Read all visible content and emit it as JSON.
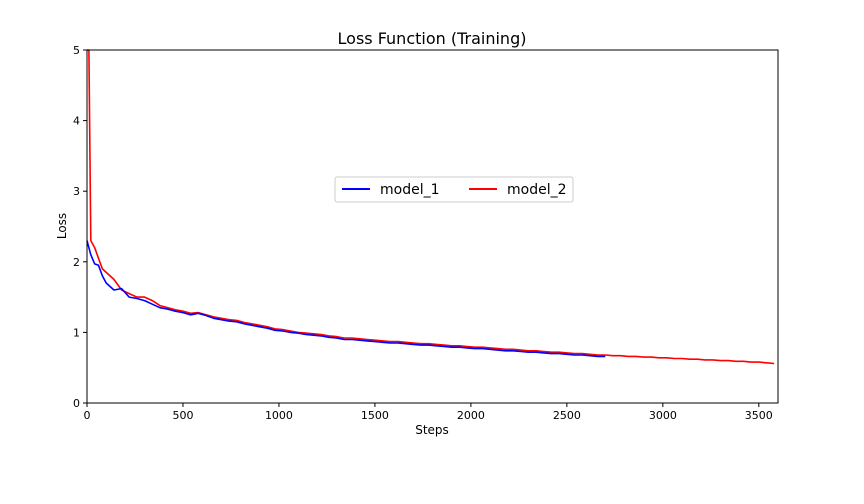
{
  "chart_data": {
    "type": "line",
    "title": "Loss Function (Training)",
    "xlabel": "Steps",
    "ylabel": "Loss",
    "xlim": [
      0,
      3600
    ],
    "ylim": [
      0,
      5
    ],
    "xticks": [
      0,
      500,
      1000,
      1500,
      2000,
      2500,
      3000,
      3500
    ],
    "yticks": [
      0,
      1,
      2,
      3,
      4,
      5
    ],
    "grid": false,
    "legend_position": "center-right",
    "series": [
      {
        "name": "model_1",
        "color": "#0000ff",
        "x": [
          0,
          10,
          20,
          40,
          60,
          80,
          100,
          140,
          180,
          220,
          260,
          300,
          340,
          380,
          420,
          460,
          500,
          540,
          580,
          620,
          660,
          700,
          740,
          780,
          820,
          860,
          900,
          940,
          980,
          1020,
          1060,
          1100,
          1140,
          1180,
          1220,
          1260,
          1300,
          1340,
          1380,
          1420,
          1460,
          1500,
          1540,
          1580,
          1620,
          1660,
          1700,
          1740,
          1780,
          1820,
          1860,
          1900,
          1940,
          1980,
          2020,
          2060,
          2100,
          2140,
          2180,
          2220,
          2260,
          2300,
          2340,
          2380,
          2420,
          2460,
          2500,
          2540,
          2580,
          2620,
          2660,
          2700
        ],
        "values": [
          2.3,
          2.2,
          2.1,
          1.97,
          1.95,
          1.8,
          1.7,
          1.6,
          1.62,
          1.5,
          1.48,
          1.45,
          1.4,
          1.35,
          1.33,
          1.3,
          1.28,
          1.25,
          1.27,
          1.24,
          1.2,
          1.18,
          1.16,
          1.15,
          1.12,
          1.1,
          1.08,
          1.06,
          1.03,
          1.02,
          1.0,
          0.99,
          0.97,
          0.96,
          0.95,
          0.93,
          0.92,
          0.9,
          0.9,
          0.89,
          0.88,
          0.87,
          0.86,
          0.85,
          0.85,
          0.84,
          0.83,
          0.82,
          0.82,
          0.81,
          0.8,
          0.79,
          0.79,
          0.78,
          0.77,
          0.77,
          0.76,
          0.75,
          0.74,
          0.74,
          0.73,
          0.72,
          0.72,
          0.71,
          0.7,
          0.7,
          0.69,
          0.68,
          0.68,
          0.67,
          0.66,
          0.66
        ]
      },
      {
        "name": "model_2",
        "color": "#ff0000",
        "x": [
          0,
          10,
          20,
          40,
          60,
          80,
          100,
          140,
          180,
          220,
          260,
          300,
          340,
          380,
          420,
          460,
          500,
          540,
          580,
          620,
          660,
          700,
          740,
          780,
          820,
          860,
          900,
          940,
          980,
          1020,
          1060,
          1100,
          1140,
          1180,
          1220,
          1260,
          1300,
          1340,
          1380,
          1420,
          1460,
          1500,
          1540,
          1580,
          1620,
          1660,
          1700,
          1740,
          1780,
          1820,
          1860,
          1900,
          1940,
          1980,
          2020,
          2060,
          2100,
          2140,
          2180,
          2220,
          2260,
          2300,
          2340,
          2380,
          2420,
          2460,
          2500,
          2540,
          2580,
          2620,
          2660,
          2700,
          2740,
          2780,
          2820,
          2860,
          2900,
          2940,
          2980,
          3020,
          3060,
          3100,
          3140,
          3180,
          3220,
          3260,
          3300,
          3340,
          3380,
          3420,
          3460,
          3500,
          3540,
          3580
        ],
        "values": [
          5.0,
          5.0,
          2.3,
          2.2,
          2.05,
          1.9,
          1.85,
          1.75,
          1.6,
          1.55,
          1.5,
          1.5,
          1.45,
          1.38,
          1.35,
          1.32,
          1.3,
          1.27,
          1.28,
          1.25,
          1.22,
          1.2,
          1.18,
          1.17,
          1.14,
          1.12,
          1.1,
          1.08,
          1.05,
          1.04,
          1.02,
          1.0,
          0.99,
          0.98,
          0.97,
          0.95,
          0.94,
          0.92,
          0.92,
          0.91,
          0.9,
          0.89,
          0.88,
          0.87,
          0.87,
          0.86,
          0.85,
          0.84,
          0.84,
          0.83,
          0.82,
          0.81,
          0.81,
          0.8,
          0.79,
          0.79,
          0.78,
          0.77,
          0.76,
          0.76,
          0.75,
          0.74,
          0.74,
          0.73,
          0.72,
          0.72,
          0.71,
          0.7,
          0.7,
          0.69,
          0.68,
          0.68,
          0.67,
          0.67,
          0.66,
          0.66,
          0.65,
          0.65,
          0.64,
          0.64,
          0.63,
          0.63,
          0.62,
          0.62,
          0.61,
          0.61,
          0.6,
          0.6,
          0.59,
          0.59,
          0.58,
          0.58,
          0.57,
          0.56
        ]
      }
    ]
  }
}
